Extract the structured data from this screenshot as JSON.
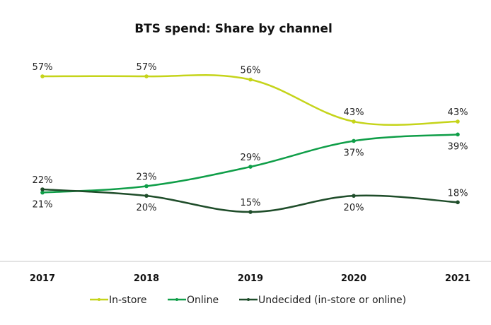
{
  "chart_data": {
    "type": "line",
    "title": "BTS spend: Share by channel",
    "xlabel": "",
    "ylabel": "",
    "categories": [
      "2017",
      "2018",
      "2019",
      "2020",
      "2021"
    ],
    "ylim": [
      0,
      60
    ],
    "grid": false,
    "legend_position": "bottom",
    "series": [
      {
        "name": "In-store",
        "color": "#c5d41a",
        "values": [
          57,
          57,
          56,
          43,
          43
        ],
        "labels": [
          "57%",
          "57%",
          "56%",
          "43%",
          "43%"
        ],
        "label_pos": [
          "above",
          "above",
          "above",
          "above",
          "above"
        ]
      },
      {
        "name": "Online",
        "color": "#0f9e48",
        "values": [
          21,
          23,
          29,
          37,
          39
        ],
        "labels": [
          "21%",
          "23%",
          "29%",
          "37%",
          "39%"
        ],
        "label_pos": [
          "below",
          "above",
          "above",
          "below",
          "below"
        ]
      },
      {
        "name": "Undecided (in-store or online)",
        "color": "#1f4d2a",
        "values": [
          22,
          20,
          15,
          20,
          18
        ],
        "labels": [
          "22%",
          "20%",
          "15%",
          "20%",
          "18%"
        ],
        "label_pos": [
          "above",
          "below",
          "above",
          "below",
          "above"
        ]
      }
    ]
  }
}
